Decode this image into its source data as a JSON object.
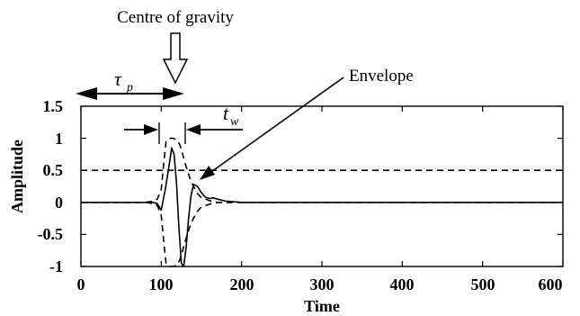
{
  "chart_data": {
    "type": "line",
    "title": "",
    "xlabel": "Time",
    "ylabel": "Amplitude",
    "xlim": [
      0,
      600
    ],
    "ylim": [
      -1,
      1.5
    ],
    "xticks": [
      0,
      100,
      200,
      300,
      400,
      500,
      600
    ],
    "xtick_labels": [
      "0",
      "100",
      "200",
      "300",
      "400",
      "500",
      "600"
    ],
    "yticks": [
      1.5,
      1,
      0.5,
      0,
      -0.5,
      -1
    ],
    "ytick_labels": [
      "1.5",
      "1",
      "0.5",
      "0",
      "-0.5",
      "-1"
    ],
    "grid": false,
    "series": [
      {
        "style": "solid",
        "x": [
          0,
          80,
          90,
          95,
          100,
          105,
          110,
          113,
          116,
          119,
          122,
          125,
          128,
          131,
          134,
          137,
          140,
          145,
          150,
          155,
          160,
          165,
          170,
          180,
          190,
          200,
          600
        ],
        "y": [
          0,
          0,
          0,
          -0.02,
          -0.12,
          0.2,
          0.6,
          0.85,
          0.75,
          0.3,
          -0.4,
          -0.95,
          -1.0,
          -0.7,
          -0.25,
          0.1,
          0.28,
          0.25,
          0.15,
          0.08,
          0.06,
          0.07,
          0.05,
          0.02,
          0.01,
          0,
          0
        ]
      },
      {
        "style": "dashed",
        "x": [
          0,
          80,
          90,
          95,
          100,
          103,
          106,
          110,
          115,
          120,
          123,
          126,
          130,
          135,
          140,
          145,
          150,
          155,
          160,
          165,
          170,
          180,
          190,
          200,
          210,
          220,
          230,
          600
        ],
        "y": [
          0,
          0,
          0.02,
          0.05,
          0.2,
          0.6,
          0.95,
          1.0,
          1.0,
          0.97,
          0.9,
          0.78,
          0.6,
          0.4,
          0.25,
          0.14,
          0.07,
          0.05,
          0.03,
          0.01,
          0,
          0,
          0,
          0,
          0,
          0,
          0,
          0
        ]
      },
      {
        "style": "dashed",
        "x": [
          0,
          80,
          90,
          95,
          100,
          103,
          106,
          110,
          115,
          120,
          123,
          126,
          130,
          135,
          140,
          145,
          150,
          155,
          160,
          165,
          170,
          180,
          190,
          200,
          210,
          220,
          230,
          600
        ],
        "y": [
          0,
          0,
          -0.02,
          -0.05,
          -0.2,
          -0.6,
          -0.95,
          -1.0,
          -1.0,
          -0.97,
          -0.9,
          -0.78,
          -0.6,
          -0.4,
          -0.25,
          -0.14,
          -0.07,
          -0.05,
          -0.03,
          -0.01,
          0,
          0,
          0,
          0,
          0,
          0,
          0,
          0
        ]
      },
      {
        "style": "dashed",
        "x": [
          0,
          600
        ],
        "y": [
          0.5,
          0.5
        ]
      }
    ],
    "annotations": {
      "cog_label": "Centre of gravity",
      "envelope_label": "Envelope",
      "tau_symbol": "τ",
      "tau_subscript": "p",
      "tw_symbol": "t",
      "tw_subscript": "w"
    }
  }
}
